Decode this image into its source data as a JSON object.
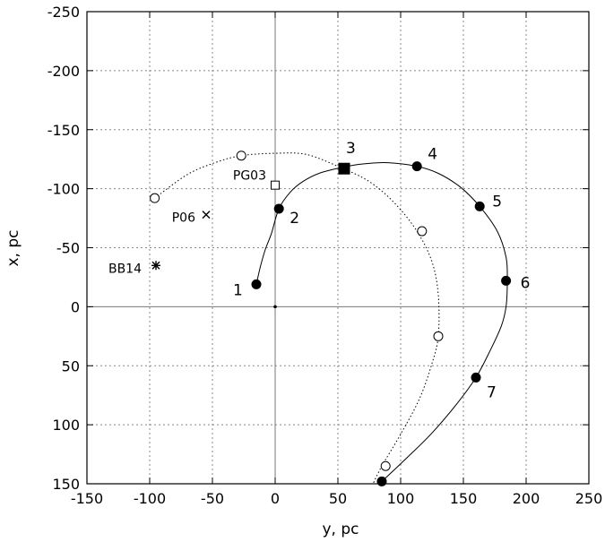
{
  "chart_data": {
    "type": "scatter",
    "xlabel": "y, pc",
    "ylabel": "x, pc",
    "xlim": [
      -150,
      250
    ],
    "ylim": [
      150,
      -250
    ],
    "x_ticks": [
      -150,
      -100,
      -50,
      0,
      50,
      100,
      150,
      200,
      250
    ],
    "y_ticks": [
      -250,
      -200,
      -150,
      -100,
      -50,
      0,
      50,
      100,
      150
    ],
    "grid": true,
    "series": [
      {
        "style": "solid-curve",
        "points": [
          [
            -15,
            -19
          ],
          [
            -12,
            -33
          ],
          [
            -8,
            -48
          ],
          [
            -3,
            -62
          ],
          [
            3,
            -83
          ],
          [
            12,
            -97
          ],
          [
            22,
            -106
          ],
          [
            35,
            -113
          ],
          [
            53,
            -118
          ],
          [
            70,
            -121
          ],
          [
            90,
            -122
          ],
          [
            113,
            -119
          ],
          [
            130,
            -113
          ],
          [
            148,
            -101
          ],
          [
            163,
            -85
          ],
          [
            177,
            -64
          ],
          [
            184,
            -42
          ],
          [
            185,
            -22
          ],
          [
            184,
            0
          ],
          [
            180,
            17
          ],
          [
            170,
            40
          ],
          [
            160,
            60
          ],
          [
            145,
            82
          ],
          [
            125,
            107
          ],
          [
            105,
            128
          ],
          [
            85,
            148
          ]
        ]
      },
      {
        "style": "dotted-curve",
        "points": [
          [
            -96,
            -92
          ],
          [
            -70,
            -112
          ],
          [
            -48,
            -122
          ],
          [
            -27,
            -128
          ],
          [
            0,
            -130
          ],
          [
            25,
            -129
          ],
          [
            52,
            -118
          ],
          [
            75,
            -106
          ],
          [
            95,
            -88
          ],
          [
            113,
            -64
          ],
          [
            125,
            -38
          ],
          [
            130,
            -10
          ],
          [
            130,
            25
          ],
          [
            125,
            48
          ],
          [
            115,
            78
          ],
          [
            100,
            108
          ],
          [
            85,
            135
          ],
          [
            78,
            150
          ]
        ]
      }
    ],
    "filled_points": [
      {
        "label": "1",
        "x": -15,
        "y": -19
      },
      {
        "label": "2",
        "x": 3,
        "y": -83
      },
      {
        "label": "4",
        "x": 113,
        "y": -119
      },
      {
        "label": "5",
        "x": 163,
        "y": -85
      },
      {
        "label": "6",
        "x": 184,
        "y": -22
      },
      {
        "label": "7",
        "x": 160,
        "y": 60
      },
      {
        "label": "",
        "x": 85,
        "y": 148
      }
    ],
    "filled_square": {
      "label": "3",
      "x": 55,
      "y": -117
    },
    "open_circles": [
      {
        "x": -96,
        "y": -92
      },
      {
        "x": -27,
        "y": -128
      },
      {
        "x": 117,
        "y": -64
      },
      {
        "x": 130,
        "y": 25
      },
      {
        "x": 88,
        "y": 135
      }
    ],
    "objects": [
      {
        "label": "PG03",
        "marker": "open-square",
        "x": 0,
        "y": -103
      },
      {
        "label": "P06",
        "marker": "cross",
        "x": -55,
        "y": -78
      },
      {
        "label": "BB14",
        "marker": "star",
        "x": -95,
        "y": -35
      }
    ],
    "origin_dot": {
      "x": 0,
      "y": 0
    }
  }
}
